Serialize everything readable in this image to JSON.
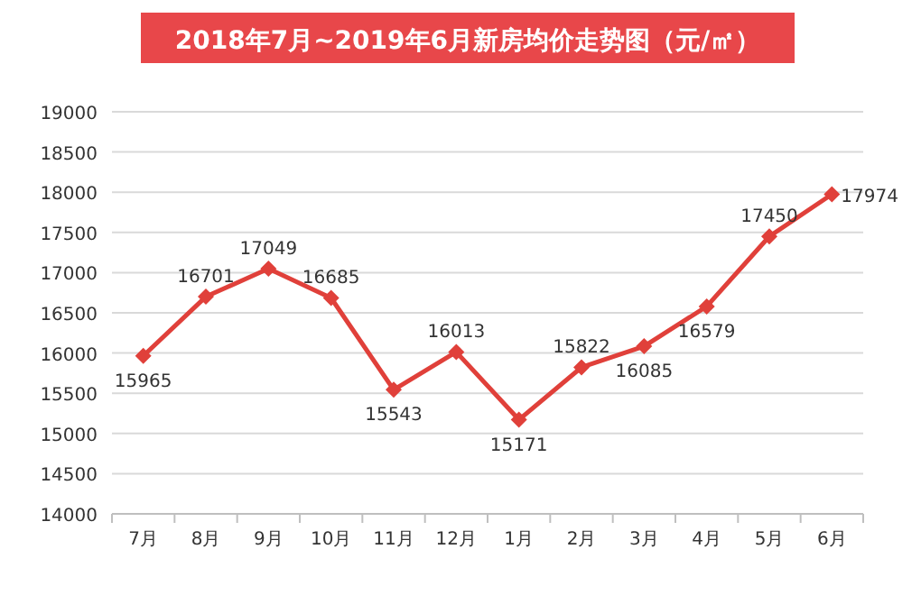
{
  "chart_data": {
    "type": "line",
    "title": "2018年7月~2019年6月新房均价走势图（元/㎡）",
    "categories": [
      "7月",
      "8月",
      "9月",
      "10月",
      "11月",
      "12月",
      "1月",
      "2月",
      "3月",
      "4月",
      "5月",
      "6月"
    ],
    "series": [
      {
        "color": "#e0403a",
        "values": [
          15965,
          16701,
          17049,
          16685,
          15543,
          16013,
          15171,
          15822,
          16085,
          16579,
          17450,
          17974
        ]
      }
    ],
    "ylim": [
      14000,
      19000
    ],
    "yticks": [
      14000,
      14500,
      15000,
      15500,
      16000,
      16500,
      17000,
      17500,
      18000,
      18500,
      19000
    ],
    "grid": "y",
    "marker": "diamond",
    "line_style": "solid",
    "data_labels": true
  }
}
